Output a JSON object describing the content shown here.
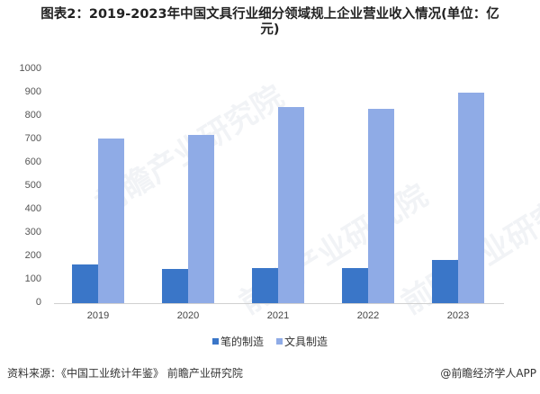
{
  "title": {
    "line1": "图表2：2019-2023年中国文具行业细分领域规上企业营业收入情况(单位：亿",
    "line2": "元)"
  },
  "chart_data": {
    "type": "bar",
    "title": "图表2：2019-2023年中国文具行业细分领域规上企业营业收入情况(单位：亿元)",
    "xlabel": "",
    "ylabel": "",
    "categories": [
      "2019",
      "2020",
      "2021",
      "2022",
      "2023"
    ],
    "series": [
      {
        "name": "笔的制造",
        "color": "#3a76c8",
        "values": [
          165,
          146,
          150,
          150,
          185
        ]
      },
      {
        "name": "文具制造",
        "color": "#8fabe6",
        "values": [
          704,
          719,
          838,
          831,
          900
        ]
      }
    ],
    "ylim": [
      0,
      1000
    ],
    "yticks": [
      "0",
      "100",
      "200",
      "300",
      "400",
      "500",
      "600",
      "700",
      "800",
      "900",
      "1000"
    ],
    "grid": false,
    "legend_position": "bottom"
  },
  "legend": {
    "items": [
      {
        "label": "笔的制造",
        "color": "#3a76c8"
      },
      {
        "label": "文具制造",
        "color": "#8fabe6"
      }
    ]
  },
  "footer": {
    "source": "资料来源：《中国工业统计年鉴》 前瞻产业研究院",
    "credit": "@前瞻经济学人APP"
  },
  "watermark": {
    "text": "前瞻产业研究院"
  }
}
